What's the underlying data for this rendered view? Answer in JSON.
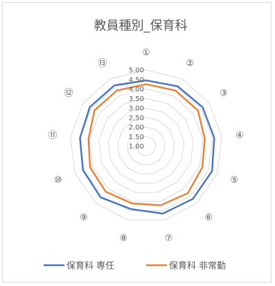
{
  "chart_data": {
    "type": "radar",
    "title": "教員種別_保育科",
    "categories": [
      "①",
      "②",
      "③",
      "④",
      "⑤",
      "⑥",
      "⑦",
      "⑧",
      "⑨",
      "⑩",
      "⑪",
      "⑫",
      "⑬"
    ],
    "rlim": [
      1.0,
      5.0
    ],
    "ticks": [
      "1.00",
      "1.50",
      "2.00",
      "2.50",
      "3.00",
      "3.50",
      "4.00",
      "4.50",
      "5.00"
    ],
    "grid": true,
    "legend_position": "bottom",
    "series": [
      {
        "name": "保育科 専任",
        "color": "#4472C4",
        "values": [
          4.45,
          4.55,
          4.6,
          4.6,
          4.7,
          4.7,
          4.65,
          4.4,
          4.6,
          4.55,
          4.5,
          4.6,
          4.6
        ]
      },
      {
        "name": "保育科 非常勤",
        "color": "#ED7D31",
        "values": [
          4.25,
          4.3,
          4.3,
          4.1,
          4.15,
          4.3,
          4.2,
          4.1,
          4.2,
          4.15,
          4.05,
          4.3,
          4.3
        ]
      }
    ]
  }
}
